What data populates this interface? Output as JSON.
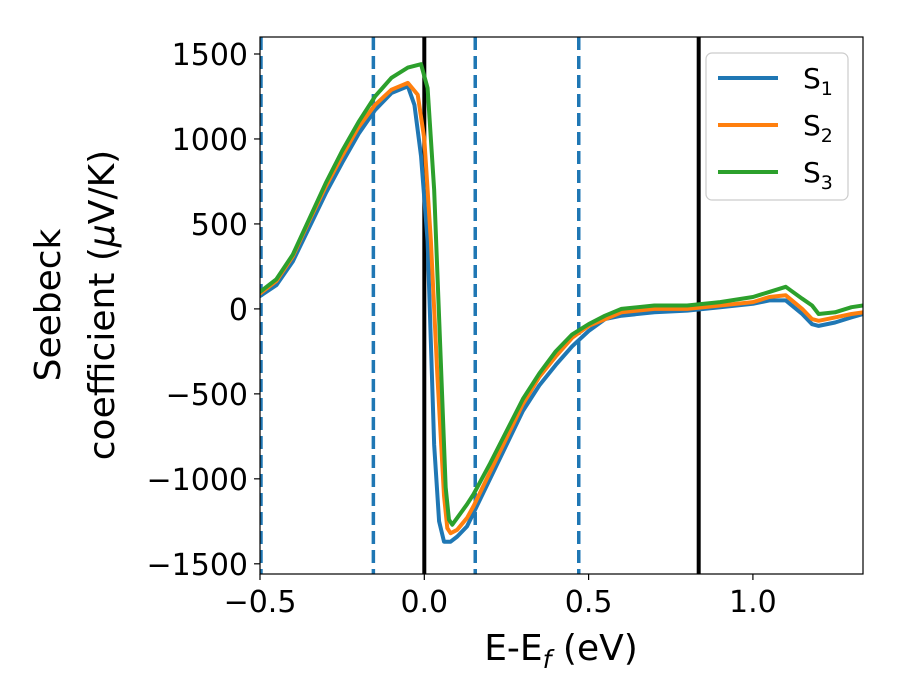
{
  "chart_data": {
    "type": "line",
    "title": "",
    "xlabel": {
      "base": "E-E",
      "sub": "f",
      "suffix": " (eV)"
    },
    "ylabel": {
      "line1": "Seebeck",
      "line2_text": "coefficient  (",
      "line2_mu": "μ",
      "line2_suffix": "V/K)"
    },
    "xlim": [
      -0.5,
      1.335
    ],
    "ylim": [
      -1560,
      1600
    ],
    "xticks": [
      -0.5,
      0.0,
      0.5,
      1.0
    ],
    "xtick_labels": [
      "−0.5",
      "0.0",
      "0.5",
      "1.0"
    ],
    "yticks": [
      -1500,
      -1000,
      -500,
      0,
      500,
      1000,
      1500
    ],
    "ytick_labels": [
      "−1500",
      "−1000",
      "−500",
      "0",
      "500",
      "1000",
      "1500"
    ],
    "grid": false,
    "legend_position": "top-right",
    "vlines": [
      {
        "x": -0.497,
        "style": "dashed",
        "color": "#1f77b4"
      },
      {
        "x": -0.155,
        "style": "dashed",
        "color": "#1f77b4"
      },
      {
        "x": 0.155,
        "style": "dashed",
        "color": "#1f77b4"
      },
      {
        "x": 0.47,
        "style": "dashed",
        "color": "#1f77b4"
      },
      {
        "x": 0.0,
        "style": "solid",
        "color": "#000000"
      },
      {
        "x": 0.835,
        "style": "solid",
        "color": "#000000"
      }
    ],
    "series": [
      {
        "name": "S",
        "sub": "1",
        "color": "#1f77b4",
        "points": [
          [
            -0.5,
            75
          ],
          [
            -0.45,
            140
          ],
          [
            -0.4,
            280
          ],
          [
            -0.35,
            480
          ],
          [
            -0.3,
            680
          ],
          [
            -0.25,
            860
          ],
          [
            -0.2,
            1030
          ],
          [
            -0.15,
            1170
          ],
          [
            -0.1,
            1270
          ],
          [
            -0.05,
            1310
          ],
          [
            -0.03,
            1200
          ],
          [
            -0.01,
            900
          ],
          [
            0.01,
            400
          ],
          [
            0.02,
            -200
          ],
          [
            0.03,
            -800
          ],
          [
            0.045,
            -1250
          ],
          [
            0.06,
            -1370
          ],
          [
            0.08,
            -1370
          ],
          [
            0.1,
            -1340
          ],
          [
            0.13,
            -1280
          ],
          [
            0.15,
            -1200
          ],
          [
            0.2,
            -1000
          ],
          [
            0.25,
            -800
          ],
          [
            0.3,
            -600
          ],
          [
            0.35,
            -450
          ],
          [
            0.4,
            -330
          ],
          [
            0.45,
            -220
          ],
          [
            0.5,
            -130
          ],
          [
            0.55,
            -60
          ],
          [
            0.6,
            -40
          ],
          [
            0.7,
            -20
          ],
          [
            0.8,
            -10
          ],
          [
            0.9,
            10
          ],
          [
            1.0,
            30
          ],
          [
            1.05,
            50
          ],
          [
            1.1,
            50
          ],
          [
            1.15,
            -30
          ],
          [
            1.18,
            -90
          ],
          [
            1.2,
            -100
          ],
          [
            1.25,
            -80
          ],
          [
            1.3,
            -50
          ],
          [
            1.335,
            -30
          ]
        ]
      },
      {
        "name": "S",
        "sub": "2",
        "color": "#ff7f0e",
        "points": [
          [
            -0.5,
            90
          ],
          [
            -0.45,
            165
          ],
          [
            -0.4,
            310
          ],
          [
            -0.35,
            520
          ],
          [
            -0.3,
            720
          ],
          [
            -0.25,
            900
          ],
          [
            -0.2,
            1070
          ],
          [
            -0.15,
            1200
          ],
          [
            -0.1,
            1290
          ],
          [
            -0.05,
            1330
          ],
          [
            -0.02,
            1260
          ],
          [
            0.0,
            1000
          ],
          [
            0.02,
            400
          ],
          [
            0.04,
            -400
          ],
          [
            0.06,
            -1100
          ],
          [
            0.07,
            -1290
          ],
          [
            0.08,
            -1320
          ],
          [
            0.1,
            -1300
          ],
          [
            0.13,
            -1230
          ],
          [
            0.15,
            -1160
          ],
          [
            0.2,
            -960
          ],
          [
            0.25,
            -760
          ],
          [
            0.3,
            -560
          ],
          [
            0.35,
            -400
          ],
          [
            0.4,
            -280
          ],
          [
            0.45,
            -170
          ],
          [
            0.5,
            -100
          ],
          [
            0.55,
            -60
          ],
          [
            0.6,
            -20
          ],
          [
            0.7,
            0
          ],
          [
            0.8,
            0
          ],
          [
            0.9,
            20
          ],
          [
            1.0,
            40
          ],
          [
            1.05,
            70
          ],
          [
            1.1,
            80
          ],
          [
            1.15,
            0
          ],
          [
            1.18,
            -60
          ],
          [
            1.2,
            -70
          ],
          [
            1.25,
            -50
          ],
          [
            1.3,
            -30
          ],
          [
            1.335,
            -20
          ]
        ]
      },
      {
        "name": "S",
        "sub": "3",
        "color": "#2ca02c",
        "points": [
          [
            -0.5,
            100
          ],
          [
            -0.45,
            175
          ],
          [
            -0.4,
            320
          ],
          [
            -0.35,
            530
          ],
          [
            -0.3,
            740
          ],
          [
            -0.25,
            930
          ],
          [
            -0.2,
            1100
          ],
          [
            -0.15,
            1250
          ],
          [
            -0.1,
            1360
          ],
          [
            -0.05,
            1420
          ],
          [
            -0.01,
            1440
          ],
          [
            0.01,
            1300
          ],
          [
            0.03,
            700
          ],
          [
            0.05,
            -300
          ],
          [
            0.065,
            -1050
          ],
          [
            0.075,
            -1240
          ],
          [
            0.085,
            -1270
          ],
          [
            0.1,
            -1230
          ],
          [
            0.13,
            -1150
          ],
          [
            0.15,
            -1090
          ],
          [
            0.2,
            -910
          ],
          [
            0.25,
            -720
          ],
          [
            0.3,
            -530
          ],
          [
            0.35,
            -380
          ],
          [
            0.4,
            -250
          ],
          [
            0.45,
            -150
          ],
          [
            0.5,
            -90
          ],
          [
            0.55,
            -40
          ],
          [
            0.6,
            0
          ],
          [
            0.7,
            20
          ],
          [
            0.8,
            20
          ],
          [
            0.9,
            40
          ],
          [
            1.0,
            70
          ],
          [
            1.05,
            100
          ],
          [
            1.1,
            130
          ],
          [
            1.15,
            60
          ],
          [
            1.18,
            20
          ],
          [
            1.2,
            -30
          ],
          [
            1.25,
            -20
          ],
          [
            1.3,
            10
          ],
          [
            1.335,
            20
          ]
        ]
      }
    ]
  }
}
